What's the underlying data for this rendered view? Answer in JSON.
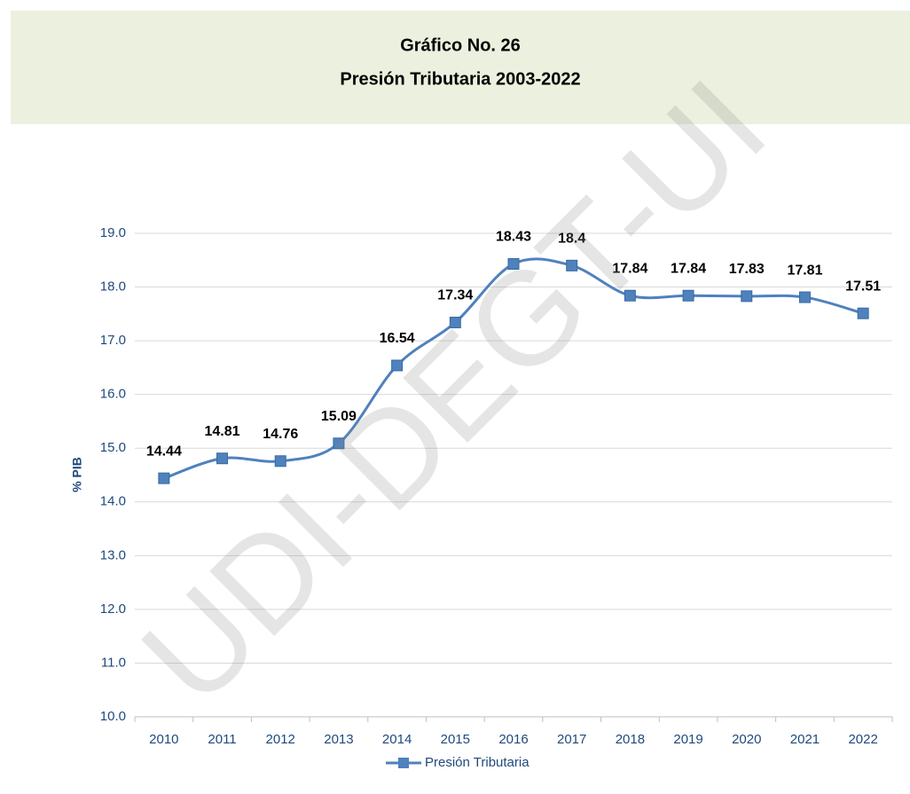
{
  "header": {
    "title": "Gráfico No. 26",
    "subtitle": "Presión Tributaria 2003-2022"
  },
  "watermark": "UDI-DEGT-UI",
  "chart_data": {
    "type": "line",
    "ylabel": "% PIB",
    "categories": [
      "2010",
      "2011",
      "2012",
      "2013",
      "2014",
      "2015",
      "2016",
      "2017",
      "2018",
      "2019",
      "2020",
      "2021",
      "2022"
    ],
    "series": [
      {
        "name": "Presión Tributaria",
        "color": "#4f81bd",
        "values": [
          14.44,
          14.81,
          14.76,
          15.09,
          16.54,
          17.34,
          18.43,
          18.4,
          17.84,
          17.84,
          17.83,
          17.81,
          17.51
        ]
      }
    ],
    "ylim": [
      10,
      19
    ],
    "yticks": [
      {
        "value": 10,
        "label": "10.0"
      },
      {
        "value": 11,
        "label": "11.0"
      },
      {
        "value": 12,
        "label": "12.0"
      },
      {
        "value": 13,
        "label": "13.0"
      },
      {
        "value": 14,
        "label": "14.0"
      },
      {
        "value": 15,
        "label": "15.0"
      },
      {
        "value": 16,
        "label": "16.0"
      },
      {
        "value": 17,
        "label": "17.0"
      },
      {
        "value": 18,
        "label": "18.0"
      },
      {
        "value": 19,
        "label": "19.0"
      }
    ],
    "grid": true,
    "legend": "bottom"
  }
}
